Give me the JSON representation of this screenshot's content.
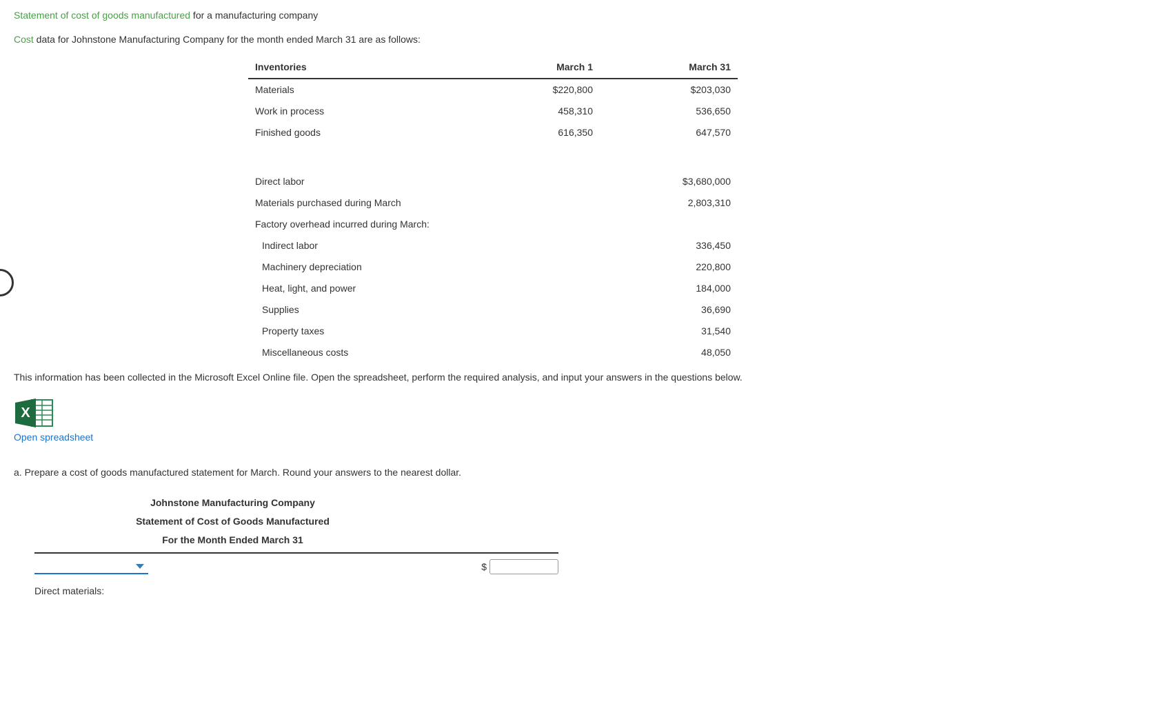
{
  "title": {
    "highlighted": "Statement of cost of goods manufactured",
    "rest": " for a manufacturing company"
  },
  "intro": {
    "highlighted": "Cost",
    "rest": " data for Johnstone Manufacturing Company for the month ended March 31 are as follows:"
  },
  "inv_table": {
    "headers": {
      "col1": "Inventories",
      "col2": "March 1",
      "col3": "March 31"
    },
    "rows": [
      {
        "label": "Materials",
        "c2": "$220,800",
        "c3": "$203,030"
      },
      {
        "label": "Work in process",
        "c2": "458,310",
        "c3": "536,650"
      },
      {
        "label": "Finished goods",
        "c2": "616,350",
        "c3": "647,570"
      }
    ]
  },
  "costs_table": {
    "rows": [
      {
        "label": "Direct labor",
        "val": "$3,680,000",
        "indent": false
      },
      {
        "label": "Materials purchased during March",
        "val": "2,803,310",
        "indent": false
      },
      {
        "label": "Factory overhead incurred during March:",
        "val": "",
        "indent": false
      },
      {
        "label": "Indirect labor",
        "val": "336,450",
        "indent": true
      },
      {
        "label": "Machinery depreciation",
        "val": "220,800",
        "indent": true
      },
      {
        "label": "Heat, light, and power",
        "val": "184,000",
        "indent": true
      },
      {
        "label": "Supplies",
        "val": "36,690",
        "indent": true
      },
      {
        "label": "Property taxes",
        "val": "31,540",
        "indent": true
      },
      {
        "label": "Miscellaneous costs",
        "val": "48,050",
        "indent": true
      }
    ]
  },
  "instruction": "This information has been collected in the Microsoft Excel Online file. Open the spreadsheet, perform the required analysis, and input your answers in the questions below.",
  "open_spreadsheet": "Open spreadsheet",
  "question_a": "a. Prepare a cost of goods manufactured statement for March. Round your answers to the nearest dollar.",
  "statement_header": {
    "line1": "Johnstone Manufacturing Company",
    "line2": "Statement of Cost of Goods Manufactured",
    "line3": "For the Month Ended March 31"
  },
  "dollar": "$",
  "direct_materials_label": "Direct materials:",
  "colors": {
    "green": "#4a9e4a",
    "link": "#1a73cc",
    "excel_dark": "#1e6b3f",
    "excel_light": "#2a8c55"
  }
}
